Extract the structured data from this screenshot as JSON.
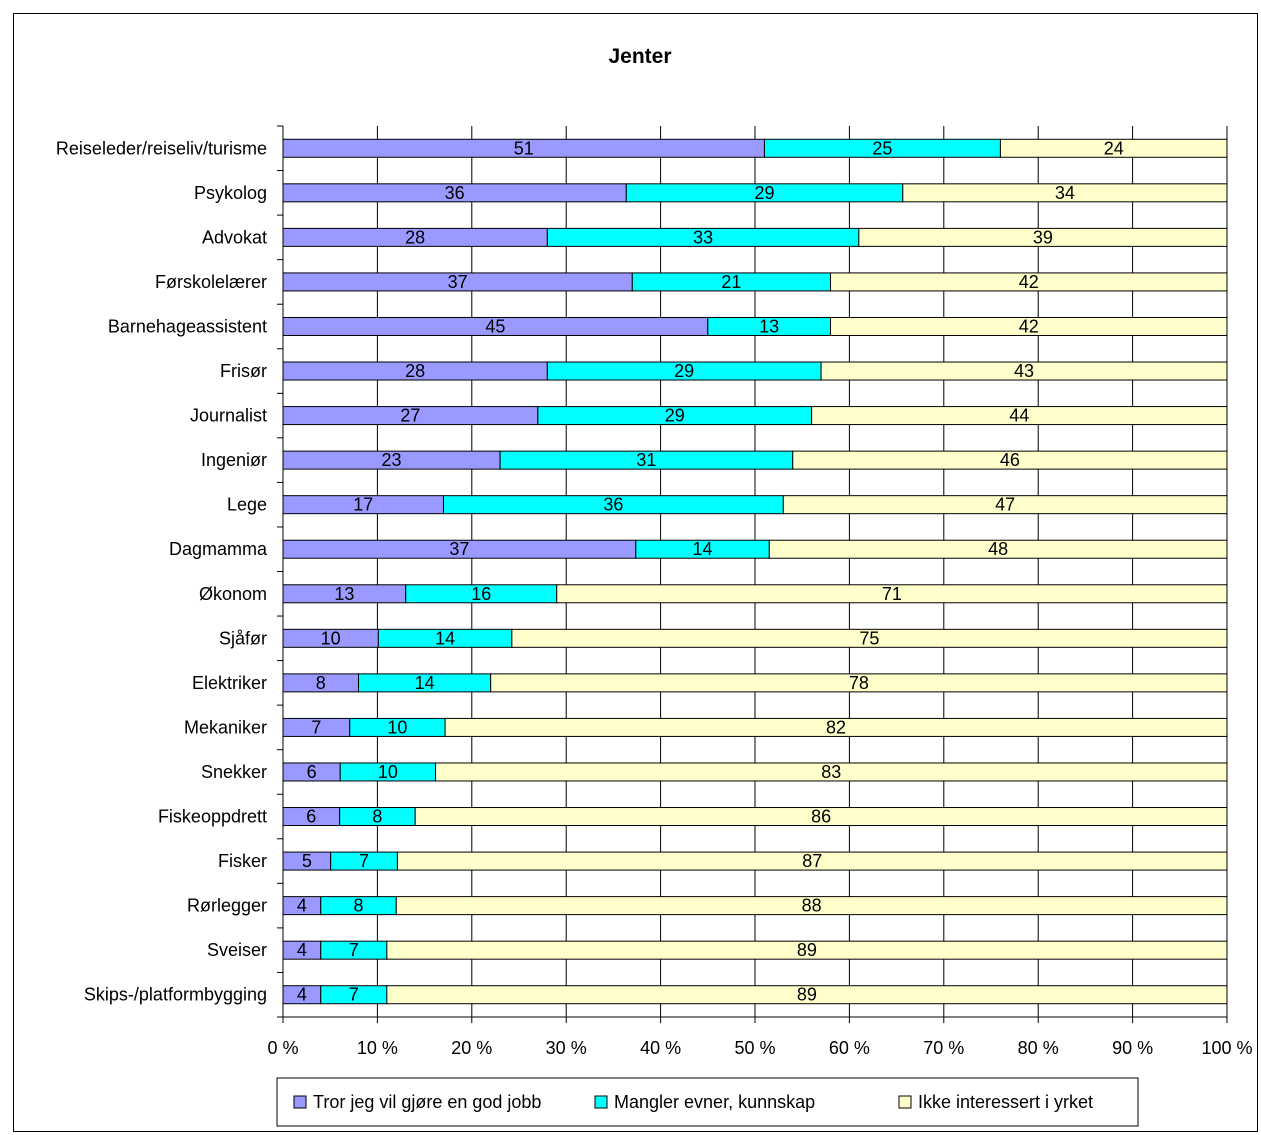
{
  "chart_data": {
    "type": "bar",
    "orientation": "horizontal",
    "stacked": "percent",
    "title": "Jenter",
    "xlabel": "",
    "ylabel": "",
    "xlim": [
      0,
      100
    ],
    "x_ticks": [
      "0 %",
      "10 %",
      "20 %",
      "30 %",
      "40 %",
      "50 %",
      "60 %",
      "70 %",
      "80 %",
      "90 %",
      "100 %"
    ],
    "grid": true,
    "legend_position": "bottom",
    "categories": [
      "Reiseleder/reiseliv/turisme",
      "Psykolog",
      "Advokat",
      "Førskolelærer",
      "Barnehageassistent",
      "Frisør",
      "Journalist",
      "Ingeniør",
      "Lege",
      "Dagmamma",
      "Økonom",
      "Sjåfør",
      "Elektriker",
      "Mekaniker",
      "Snekker",
      "Fiskeoppdrett",
      "Fisker",
      "Rørlegger",
      "Sveiser",
      "Skips-/platformbygging"
    ],
    "series": [
      {
        "name": "Tror jeg vil gjøre en god jobb",
        "color": "#9999ff",
        "values": [
          51,
          36,
          28,
          37,
          45,
          28,
          27,
          23,
          17,
          37,
          13,
          10,
          8,
          7,
          6,
          6,
          5,
          4,
          4,
          4
        ]
      },
      {
        "name": "Mangler evner, kunnskap",
        "color": "#00ffff",
        "values": [
          25,
          29,
          33,
          21,
          13,
          29,
          29,
          31,
          36,
          14,
          16,
          14,
          14,
          10,
          10,
          8,
          7,
          8,
          7,
          7
        ]
      },
      {
        "name": "Ikke interessert i yrket",
        "color": "#ffffcc",
        "values": [
          24,
          34,
          39,
          42,
          42,
          43,
          44,
          46,
          47,
          48,
          71,
          75,
          78,
          82,
          83,
          86,
          87,
          88,
          89,
          89
        ]
      }
    ]
  }
}
